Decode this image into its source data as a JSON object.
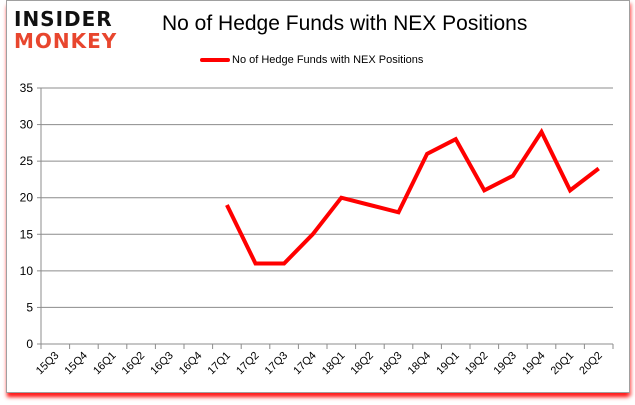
{
  "logo": {
    "line1": "INSIDER",
    "line2": "MONKEY"
  },
  "colors": {
    "series": "#ff0000",
    "grid": "#8c8c8c",
    "frame_shadow": "#ff0000",
    "logo_red": "#e8462e"
  },
  "chart_data": {
    "type": "line",
    "title": "No of Hedge Funds with NEX Positions",
    "xlabel": "",
    "ylabel": "",
    "ylim": [
      0,
      35
    ],
    "yticks": [
      0,
      5,
      10,
      15,
      20,
      25,
      30,
      35
    ],
    "grid": true,
    "legend_position": "top",
    "categories": [
      "15Q3",
      "15Q4",
      "16Q1",
      "16Q2",
      "16Q3",
      "16Q4",
      "17Q1",
      "17Q2",
      "17Q3",
      "17Q4",
      "18Q1",
      "18Q2",
      "18Q3",
      "18Q4",
      "19Q1",
      "19Q2",
      "19Q3",
      "19Q4",
      "20Q1",
      "20Q2"
    ],
    "series": [
      {
        "name": "No of Hedge Funds with NEX Positions",
        "color": "#ff0000",
        "values": [
          null,
          null,
          null,
          null,
          null,
          null,
          19,
          11,
          11,
          15,
          20,
          19,
          18,
          26,
          28,
          21,
          23,
          29,
          21,
          24
        ]
      }
    ]
  }
}
